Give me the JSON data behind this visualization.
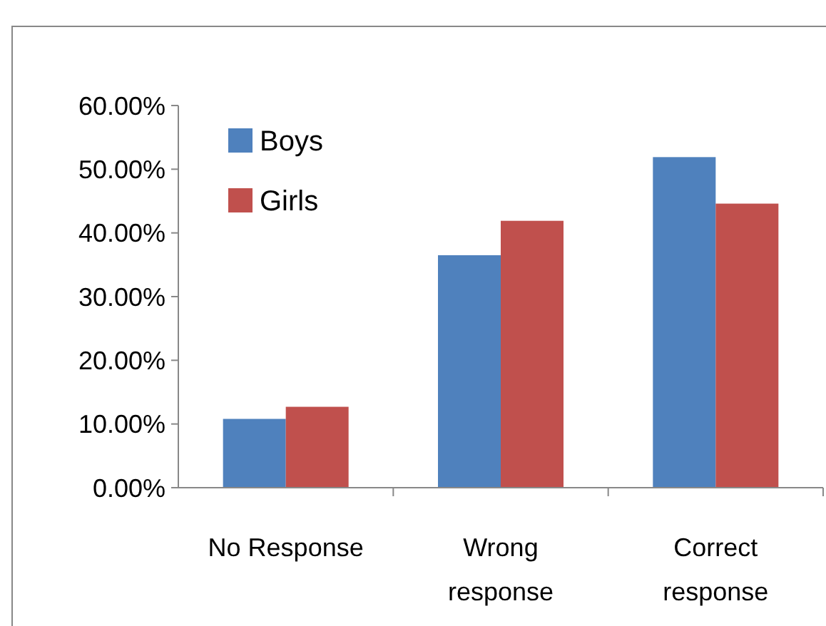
{
  "chart_data": {
    "type": "bar",
    "categories": [
      "No Response",
      "Wrong response",
      "Correct response"
    ],
    "series": [
      {
        "name": "Boys",
        "color": "#4f81bd",
        "values": [
          10.8,
          36.5,
          51.9
        ]
      },
      {
        "name": "Girls",
        "color": "#c0504d",
        "values": [
          12.7,
          41.9,
          44.6
        ]
      }
    ],
    "ylim": [
      0,
      60
    ],
    "yticks": [
      {
        "value": 0,
        "label": "0.00%"
      },
      {
        "value": 10,
        "label": "10.00%"
      },
      {
        "value": 20,
        "label": "20.00%"
      },
      {
        "value": 30,
        "label": "30.00%"
      },
      {
        "value": 40,
        "label": "40.00%"
      },
      {
        "value": 50,
        "label": "50.00%"
      },
      {
        "value": 60,
        "label": "60.00%"
      }
    ],
    "grid": false,
    "legend": "top left"
  }
}
